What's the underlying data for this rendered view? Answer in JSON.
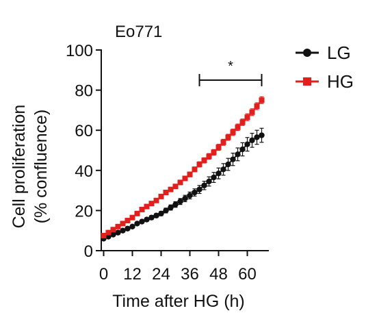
{
  "chart_data": {
    "type": "line",
    "title": "Eo771",
    "xlabel": "Time after HG (h)",
    "ylabel_lines": [
      "Cell proliferation",
      "(% confluence)"
    ],
    "xlim": [
      -1,
      69
    ],
    "ylim": [
      0,
      100
    ],
    "xticks": [
      0,
      12,
      24,
      36,
      48,
      60
    ],
    "yticks": [
      0,
      20,
      40,
      60,
      80,
      100
    ],
    "x": [
      0,
      2,
      4,
      6,
      8,
      10,
      12,
      14,
      16,
      18,
      20,
      22,
      24,
      26,
      28,
      30,
      32,
      34,
      36,
      38,
      40,
      42,
      44,
      46,
      48,
      50,
      52,
      54,
      56,
      58,
      60,
      62,
      64,
      66
    ],
    "series": [
      {
        "name": "LG",
        "color": "#111111",
        "marker": "circle",
        "values": [
          6,
          7,
          8,
          9,
          10,
          11,
          12,
          13.5,
          14.5,
          15.5,
          16.5,
          17.5,
          18.5,
          20,
          21.5,
          23,
          24.5,
          26,
          27.5,
          29,
          30.5,
          32.5,
          34.5,
          36.5,
          38.5,
          40.5,
          43,
          45.5,
          48,
          50.5,
          53,
          55,
          56.5,
          57.5
        ],
        "errors": [
          0.5,
          0.5,
          0.5,
          0.5,
          0.5,
          0.5,
          0.6,
          0.7,
          0.8,
          0.9,
          1,
          1,
          1.1,
          1.2,
          1.3,
          1.4,
          1.5,
          1.6,
          1.7,
          1.8,
          2,
          2.1,
          2.3,
          2.5,
          2.7,
          2.9,
          3,
          3.1,
          3.2,
          3.3,
          3.4,
          3.5,
          3.5,
          3.5
        ]
      },
      {
        "name": "HG",
        "color": "#e0201c",
        "marker": "square",
        "values": [
          7.5,
          9,
          10.5,
          12,
          13.5,
          15,
          16.5,
          18.5,
          20.5,
          22,
          23.5,
          25,
          27,
          29,
          30.5,
          32,
          34,
          36,
          38,
          40.5,
          43,
          45,
          47,
          49,
          51.5,
          54,
          56.5,
          59,
          61.5,
          64,
          66.5,
          69,
          72,
          75
        ],
        "errors": [
          0.5,
          0.5,
          0.5,
          0.5,
          0.5,
          0.6,
          0.6,
          0.7,
          0.7,
          0.8,
          0.8,
          0.9,
          0.9,
          1,
          1,
          1,
          1.1,
          1.1,
          1.2,
          1.2,
          1.3,
          1.3,
          1.4,
          1.4,
          1.5,
          1.5,
          1.5,
          1.6,
          1.6,
          1.6,
          1.7,
          1.7,
          1.7,
          1.7
        ]
      }
    ],
    "significance": {
      "label": "*",
      "x_range": [
        40,
        66
      ],
      "y": 85
    },
    "legend_position": "top-right"
  }
}
